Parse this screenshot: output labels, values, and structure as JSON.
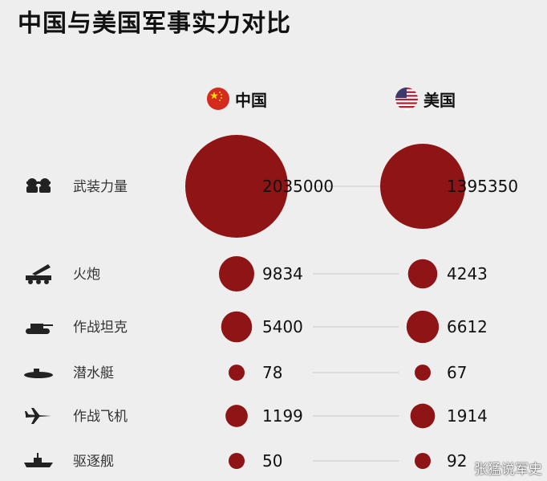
{
  "title": "中国与美国军事实力对比",
  "columns": [
    {
      "name": "中国",
      "flag": "china-flag-icon"
    },
    {
      "name": "美国",
      "flag": "usa-flag-icon"
    }
  ],
  "colors": {
    "bubble": "#8e1416",
    "connector": "#c8c6c6"
  },
  "watermark": "张猛说军史",
  "chart_data": {
    "type": "bubble",
    "title": "中国与美国军事实力对比",
    "series": [
      {
        "name": "中国"
      },
      {
        "name": "美国"
      }
    ],
    "rows": [
      {
        "label": "武装力量",
        "icon": "soldiers-icon",
        "values": [
          2035000,
          1395350
        ]
      },
      {
        "label": "火炮",
        "icon": "rocket-launcher-icon",
        "values": [
          9834,
          4243
        ]
      },
      {
        "label": "作战坦克",
        "icon": "tank-icon",
        "values": [
          5400,
          6612
        ]
      },
      {
        "label": "潜水艇",
        "icon": "submarine-icon",
        "values": [
          78,
          67
        ]
      },
      {
        "label": "作战飞机",
        "icon": "fighter-jet-icon",
        "values": [
          1199,
          1914
        ]
      },
      {
        "label": "驱逐舰",
        "icon": "destroyer-icon",
        "values": [
          50,
          92
        ]
      }
    ]
  }
}
